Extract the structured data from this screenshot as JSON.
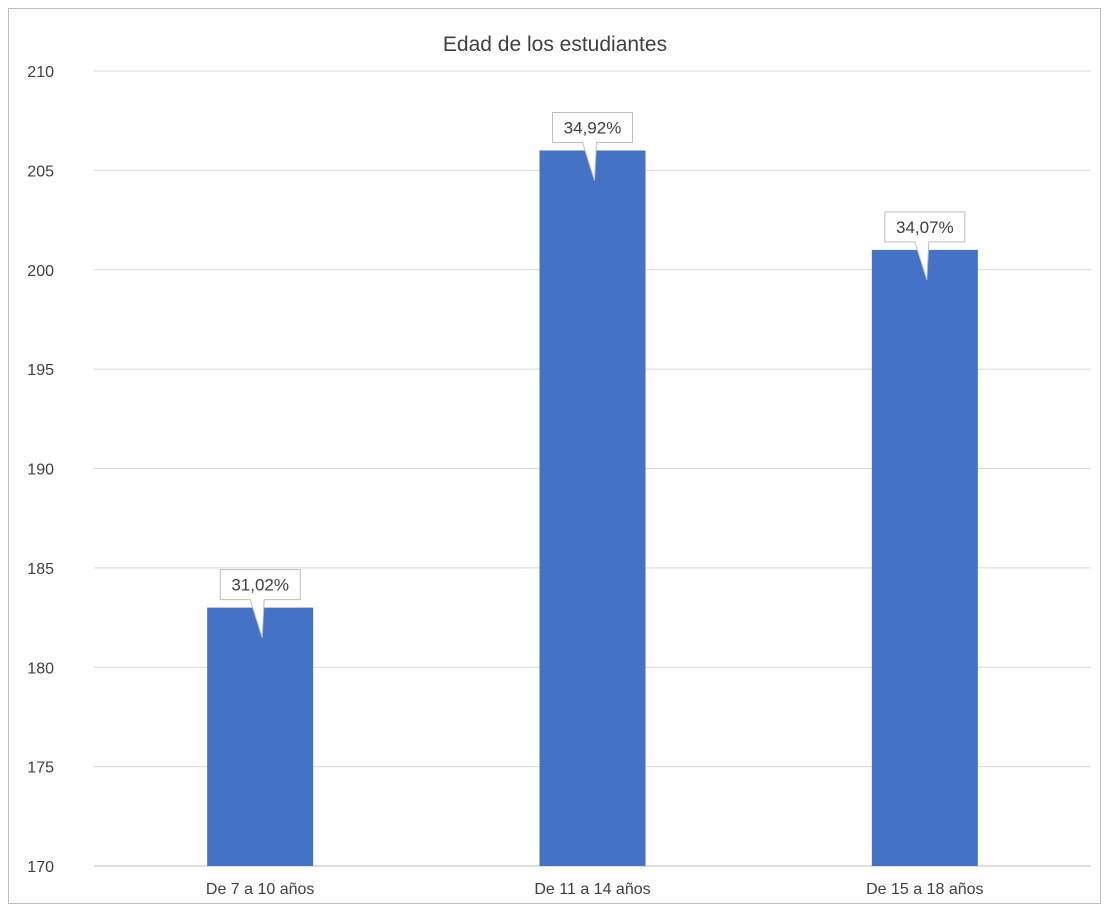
{
  "chart_data": {
    "type": "bar",
    "title": "Edad de los estudiantes",
    "categories": [
      "De 7 a 10 años",
      "De 11 a 14 años",
      "De 15 a 18 años"
    ],
    "values": [
      183,
      206,
      201
    ],
    "data_labels": [
      "31,02%",
      "34,92%",
      "34,07%"
    ],
    "ylim": [
      170,
      210
    ],
    "yticks": [
      170,
      175,
      180,
      185,
      190,
      195,
      200,
      205,
      210
    ],
    "xlabel": "",
    "ylabel": "",
    "grid": true,
    "legend": "none",
    "bar_color": "#4472c4"
  }
}
